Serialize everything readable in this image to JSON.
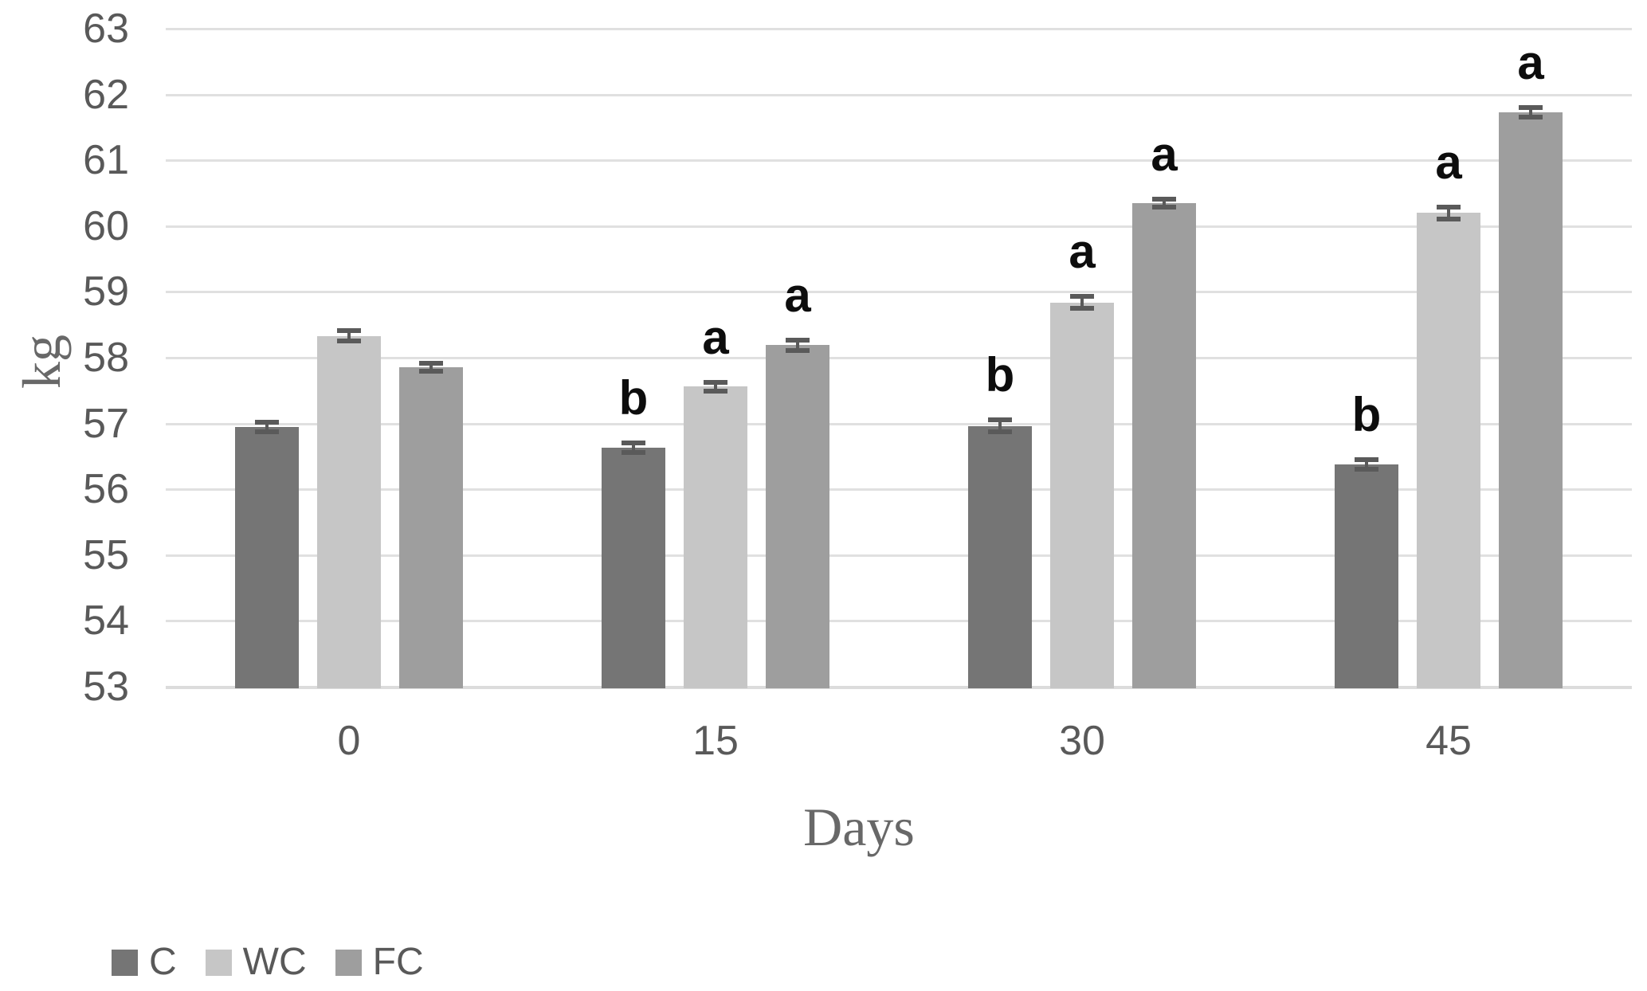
{
  "figure": {
    "background": "#ffffff"
  },
  "chart_data": {
    "type": "bar",
    "title": "",
    "xlabel": "Days",
    "ylabel": "kg",
    "ylim": [
      53,
      63
    ],
    "ytick_step": 1,
    "yticks": [
      "53",
      "54",
      "55",
      "56",
      "57",
      "58",
      "59",
      "60",
      "61",
      "62",
      "63"
    ],
    "categories": [
      "0",
      "15",
      "30",
      "45"
    ],
    "grid": "horizontal-only",
    "legend_position": "bottom-left",
    "series": [
      {
        "name": "C",
        "color": "#757575",
        "values": [
          56.95,
          56.63,
          56.96,
          56.38
        ],
        "errors": [
          0.07,
          0.07,
          0.09,
          0.07
        ],
        "letters": [
          "",
          "b",
          "b",
          "b"
        ]
      },
      {
        "name": "WC",
        "color": "#c6c6c6",
        "values": [
          58.33,
          57.56,
          58.84,
          60.2
        ],
        "errors": [
          0.08,
          0.07,
          0.09,
          0.09
        ],
        "letters": [
          "",
          "a",
          "a",
          "a"
        ]
      },
      {
        "name": "FC",
        "color": "#9e9e9e",
        "values": [
          57.86,
          58.19,
          60.35,
          61.73
        ],
        "errors": [
          0.06,
          0.08,
          0.06,
          0.07
        ],
        "letters": [
          "",
          "a",
          "a",
          "a"
        ]
      }
    ],
    "colors": {
      "gridline": "#e0e0e0",
      "baseline": "#dcdcdc",
      "error_bar": "#5a5a5a",
      "letter": "#0d0d0d",
      "tick_label": "#595959",
      "axis_title": "#686868",
      "legend_text": "#595959"
    }
  }
}
